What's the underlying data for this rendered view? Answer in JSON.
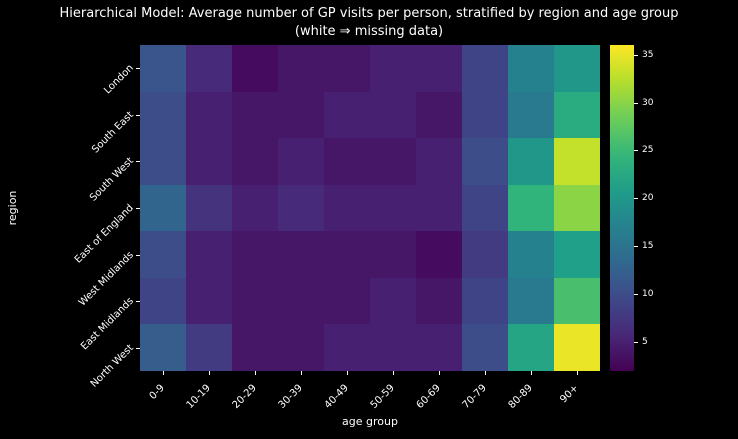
{
  "figure": {
    "title_line1": "Hierarchical Model: Average number of GP visits per person, stratified by region and age group",
    "title_line2": "(white ⇒ missing data)",
    "background_color": "#000000",
    "text_color": "#ffffff"
  },
  "chart_data": {
    "type": "heatmap",
    "title": "Hierarchical Model: Average number of GP visits per person, stratified by region and age group",
    "subtitle": "(white ⇒ missing data)",
    "xlabel": "age group",
    "ylabel": "region",
    "x_categories": [
      "0-9",
      "10-19",
      "20-29",
      "30-39",
      "40-49",
      "50-59",
      "60-69",
      "70-79",
      "80-89",
      "90+"
    ],
    "y_categories": [
      "London",
      "South East",
      "South West",
      "East of England",
      "West Midlands",
      "East Midlands",
      "North West"
    ],
    "values": [
      [
        11,
        6,
        3,
        4,
        4,
        5,
        5,
        9,
        17,
        20
      ],
      [
        10,
        5,
        4,
        4,
        5,
        5,
        4,
        9,
        16,
        23
      ],
      [
        10,
        5,
        4,
        5,
        4,
        4,
        5,
        10,
        20,
        33
      ],
      [
        13,
        7,
        5,
        6,
        5,
        5,
        5,
        9,
        24,
        30
      ],
      [
        10,
        5,
        4,
        4,
        4,
        4,
        3,
        8,
        17,
        21
      ],
      [
        9,
        5,
        4,
        4,
        4,
        5,
        4,
        9,
        16,
        26
      ],
      [
        12,
        8,
        4,
        4,
        5,
        5,
        5,
        10,
        22,
        35
      ]
    ],
    "colormap": "viridis",
    "vmin": 2,
    "vmax": 36,
    "colorbar_ticks": [
      5,
      10,
      15,
      20,
      25,
      30,
      35
    ],
    "legend_position": "right",
    "grid": false
  }
}
